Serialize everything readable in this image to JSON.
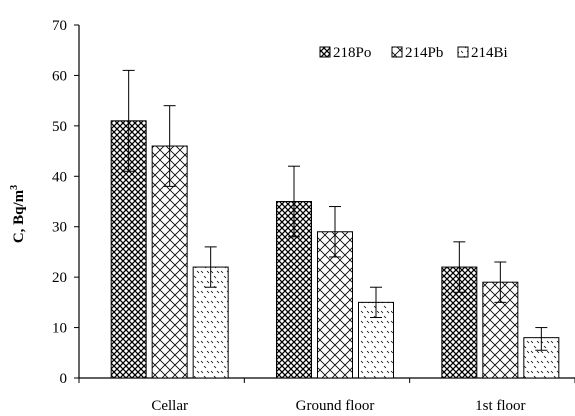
{
  "chart_data": {
    "type": "bar",
    "title": "",
    "xlabel": "",
    "ylabel": "C, Bq/m",
    "ylabel_superscript": "3",
    "ylim": [
      0,
      70
    ],
    "yticks": [
      0,
      10,
      20,
      30,
      40,
      50,
      60,
      70
    ],
    "grid": false,
    "legend_position": "top-right",
    "categories": [
      "Cellar",
      "Ground floor",
      "1st floor"
    ],
    "series": [
      {
        "name": "218Po",
        "pattern": "cross-hatch",
        "values": [
          51,
          35,
          22
        ],
        "error_low": [
          41,
          28,
          17
        ],
        "error_high": [
          61,
          42,
          27
        ]
      },
      {
        "name": "214Pb",
        "pattern": "diamond-hatch",
        "values": [
          46,
          29,
          19
        ],
        "error_low": [
          38,
          24,
          15
        ],
        "error_high": [
          54,
          34,
          23
        ]
      },
      {
        "name": "214Bi",
        "pattern": "dotted",
        "values": [
          22,
          15,
          8
        ],
        "error_low": [
          18,
          12,
          5.5
        ],
        "error_high": [
          26,
          18,
          10
        ]
      }
    ]
  }
}
